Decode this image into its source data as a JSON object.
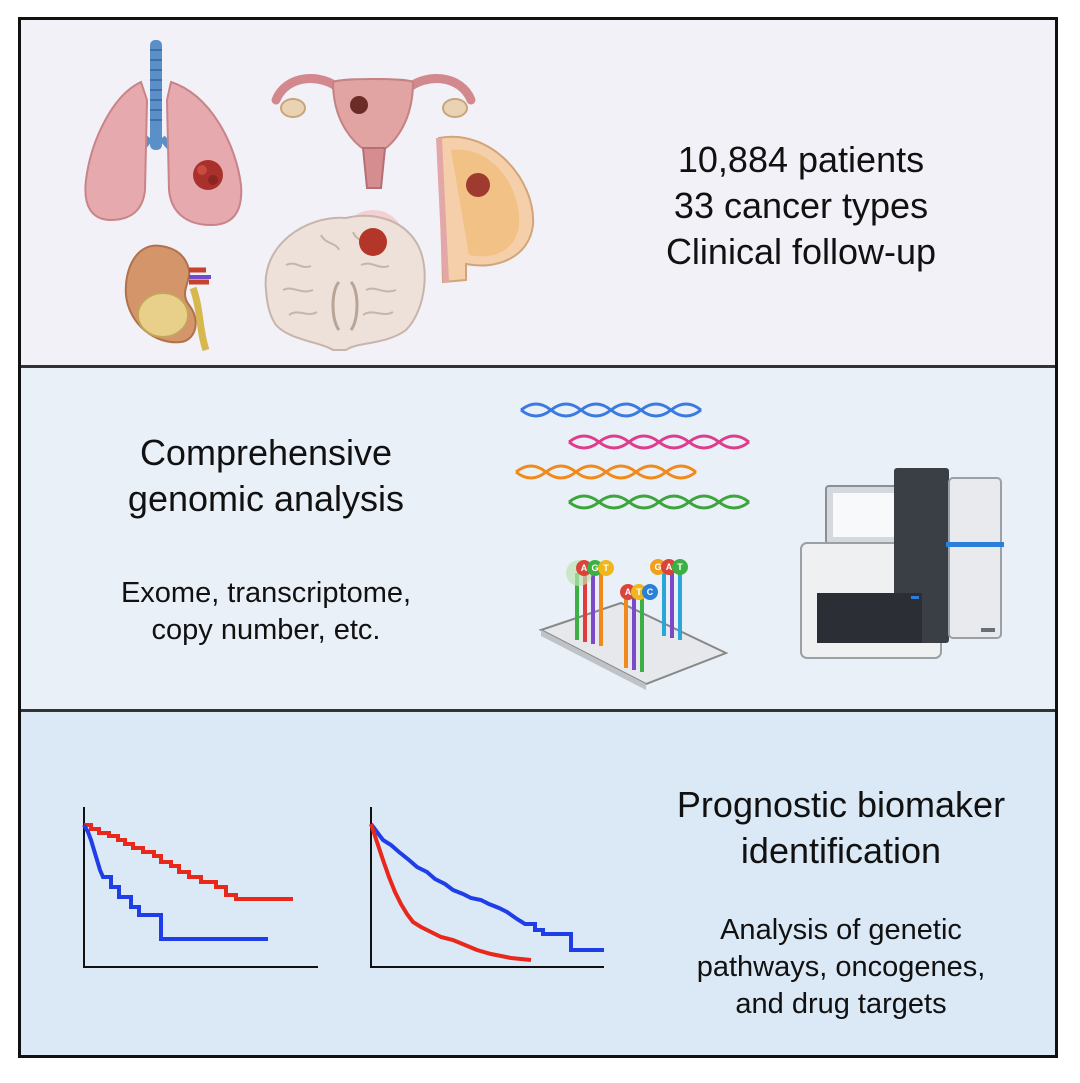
{
  "cohort": {
    "line1": "10,884 patients",
    "line2": "33 cancer types",
    "line3": "Clinical follow-up",
    "icons": [
      "lung-icon",
      "uterus-icon",
      "breast-icon",
      "kidney-icon",
      "brain-icon"
    ]
  },
  "genomics": {
    "title_line1": "Comprehensive",
    "title_line2": "genomic analysis",
    "sub_line1": "Exome, transcriptome,",
    "sub_line2": "copy number, etc.",
    "sequencing_letters": [
      "A",
      "G",
      "T",
      "A",
      "T",
      "C",
      "G",
      "A",
      "T"
    ],
    "icons": [
      "dna-strands-icon",
      "sequencing-chip-icon",
      "sequencer-machine-icon"
    ]
  },
  "prognosis": {
    "title_line1": "Prognostic biomaker",
    "title_line2": "identification",
    "sub_line1": "Analysis of genetic",
    "sub_line2": "pathways, oncogenes,",
    "sub_line3": "and drug targets",
    "colors": {
      "series_a": "#e8281b",
      "series_b": "#1f3ee8"
    }
  },
  "colors": {
    "panel1": "#f1f1f7",
    "panel2": "#eaf0f8",
    "panel3": "#dbe8f5",
    "border": "#111111"
  }
}
